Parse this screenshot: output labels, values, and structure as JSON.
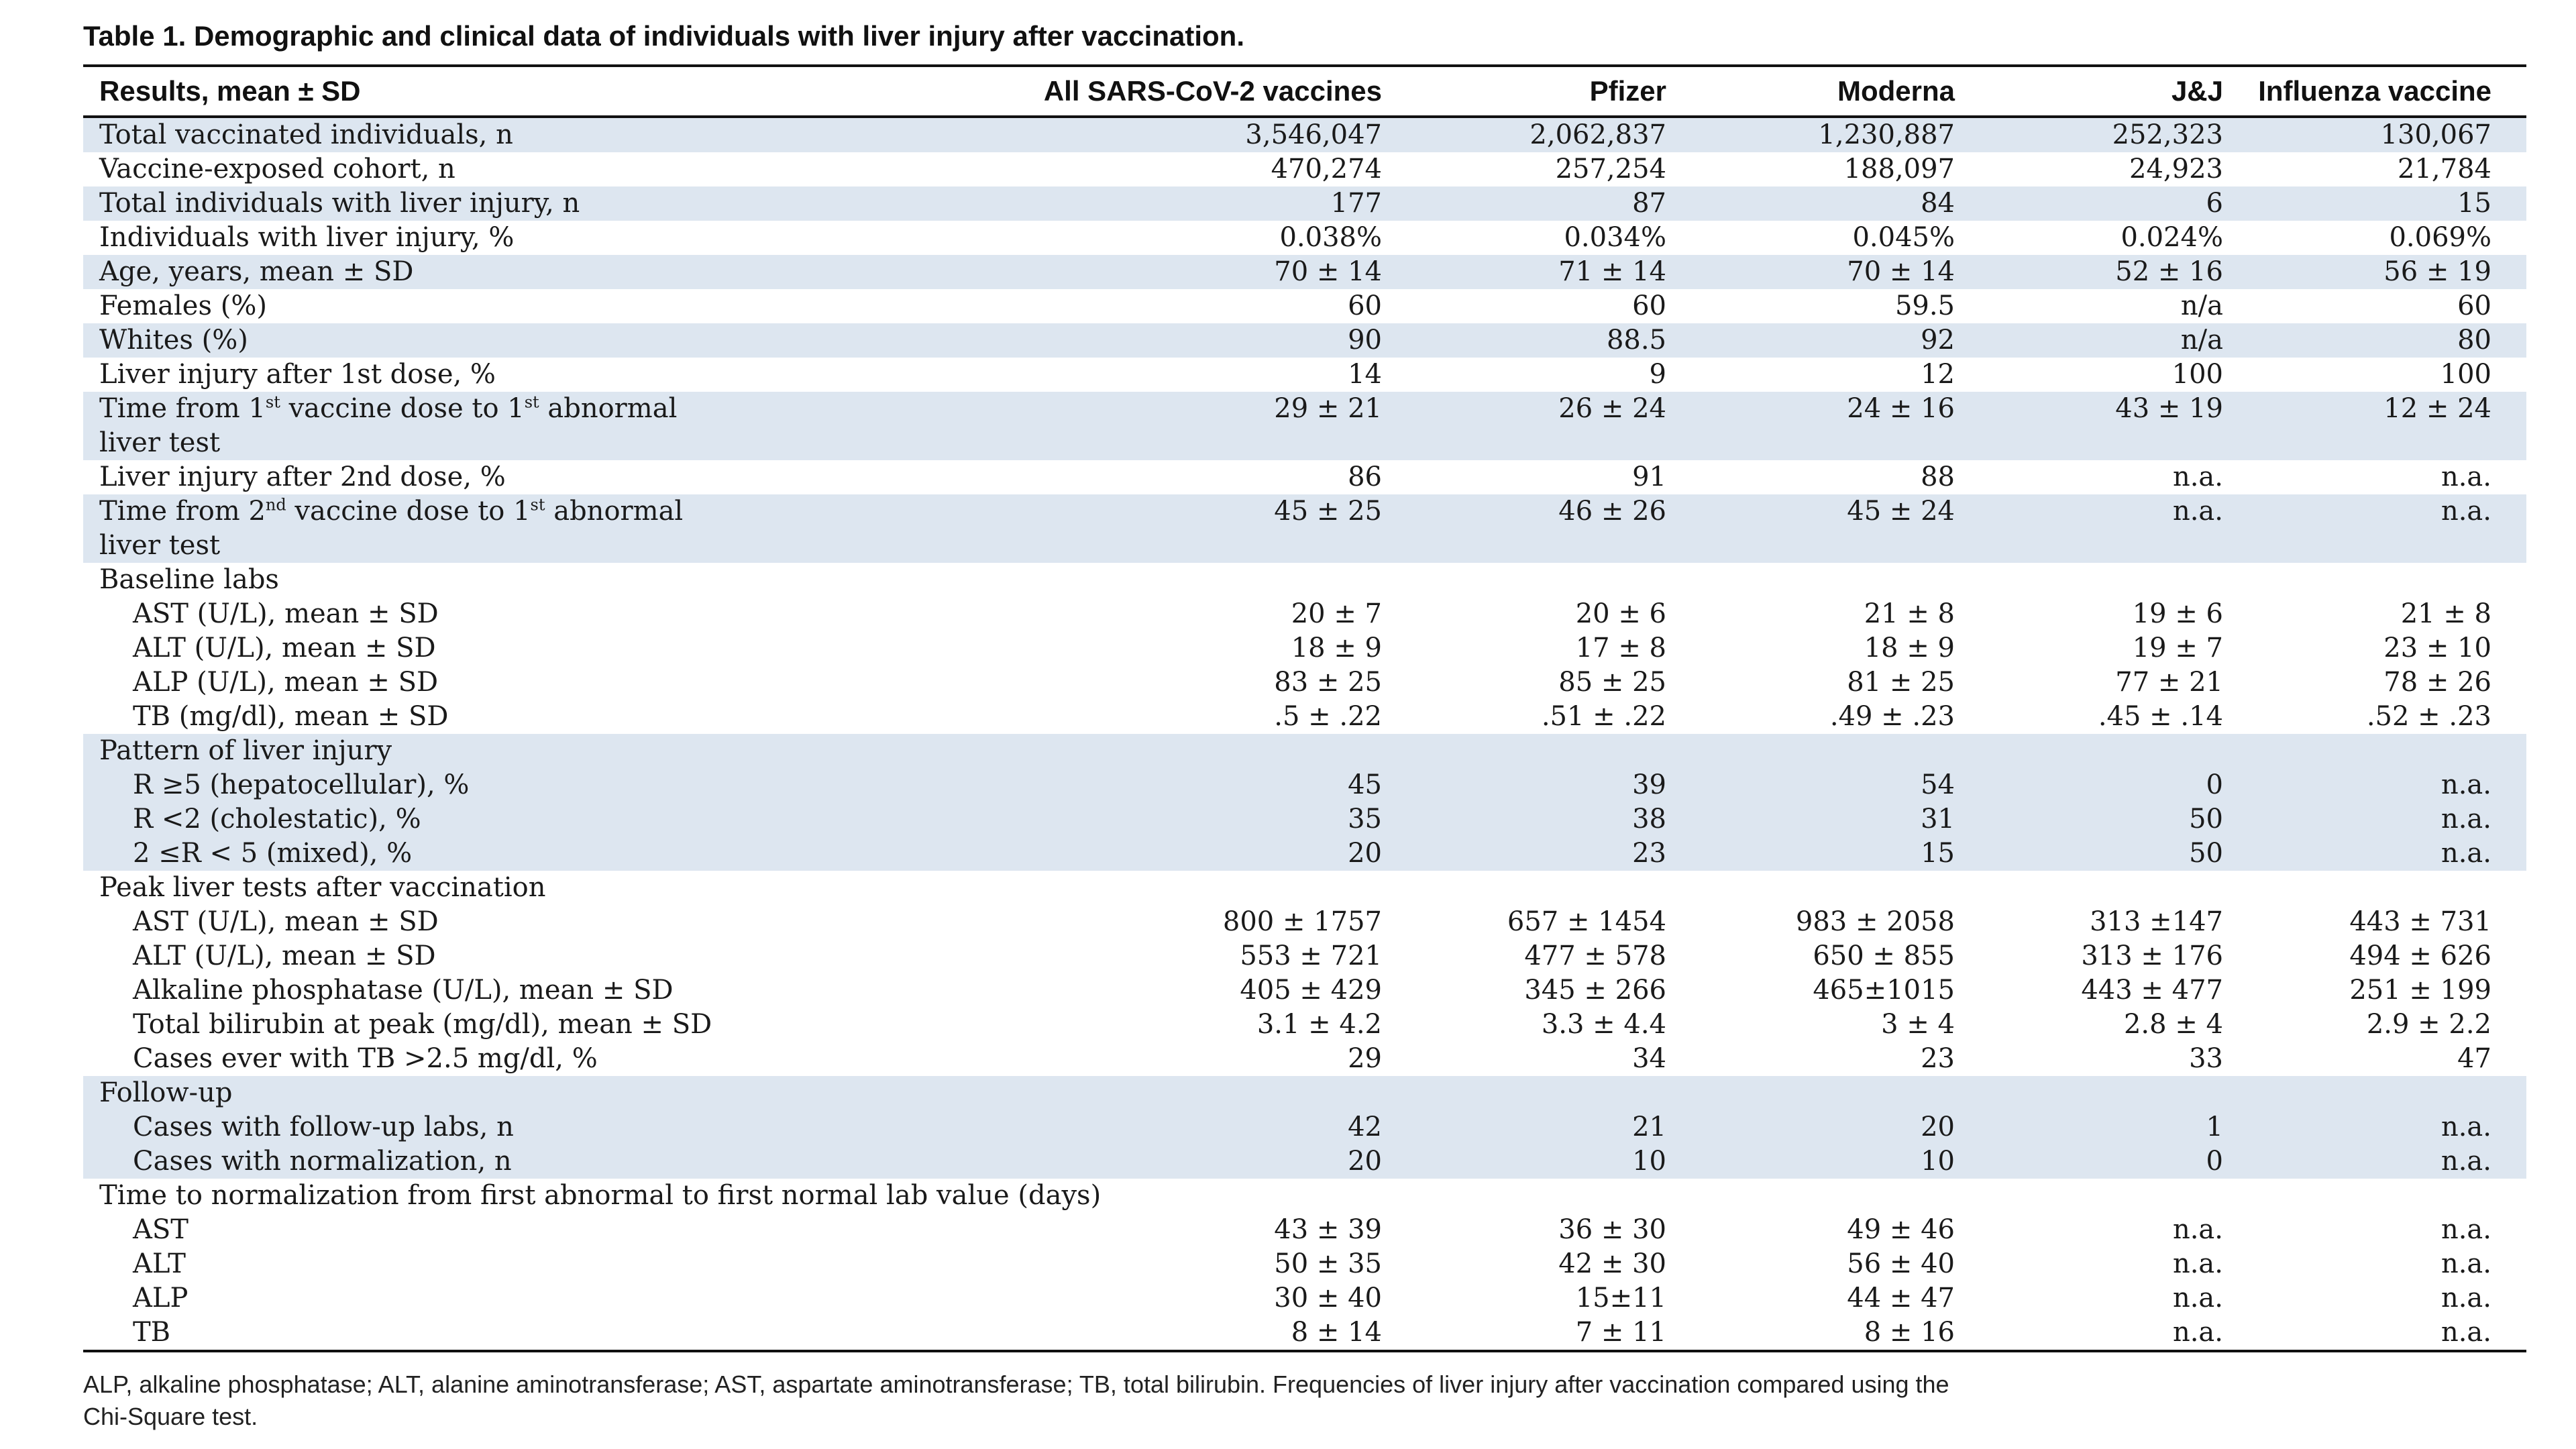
{
  "title": "Table 1. Demographic and clinical data of individuals with liver injury after vaccination.",
  "headers": [
    "Results, mean ± SD",
    "All SARS-CoV-2 vaccines",
    "Pfizer",
    "Moderna",
    "J&J",
    "Influenza vaccine"
  ],
  "rows": [
    {
      "label": "Total vaccinated individuals, n",
      "cells": [
        "3,546,047",
        "2,062,837",
        "1,230,887",
        "252,323",
        "130,067"
      ]
    },
    {
      "label": "Vaccine-exposed cohort, n",
      "cells": [
        "470,274",
        "257,254",
        "188,097",
        "24,923",
        "21,784"
      ]
    },
    {
      "label": "Total individuals with liver injury, n",
      "cells": [
        "177",
        "87",
        "84",
        "6",
        "15"
      ]
    },
    {
      "label": "Individuals with liver injury, %",
      "cells": [
        "0.038%",
        "0.034%",
        "0.045%",
        "0.024%",
        "0.069%"
      ]
    },
    {
      "label": "Age, years, mean ± SD",
      "cells": [
        "70 ± 14",
        "71 ± 14",
        "70 ± 14",
        "52 ± 16",
        "56 ± 19"
      ]
    },
    {
      "label": "Females (%)",
      "cells": [
        "60",
        "60",
        "59.5",
        "n/a",
        "60"
      ]
    },
    {
      "label": "Whites (%)",
      "cells": [
        "90",
        "88.5",
        "92",
        "n/a",
        "80"
      ]
    },
    {
      "label": "Liver injury after 1st dose, %",
      "cells": [
        "14",
        "9",
        "12",
        "100",
        "100"
      ]
    },
    {
      "label_a": "Time from 1",
      "label_sup1": "st",
      "label_b": " vaccine dose to 1",
      "label_sup2": "st",
      "label_c": " abnormal",
      "label_line2": "liver test",
      "cells": [
        "29 ± 21",
        "26 ± 24",
        "24 ± 16",
        "43 ± 19",
        "12 ± 24"
      ]
    },
    {
      "label": "Liver injury after 2nd dose, %",
      "cells": [
        "86",
        "91",
        "88",
        "n.a.",
        "n.a."
      ]
    },
    {
      "label_a": "Time from 2",
      "label_sup1": "nd",
      "label_b": " vaccine dose to 1",
      "label_sup2": "st",
      "label_c": " abnormal",
      "label_line2": "liver test",
      "cells": [
        "45 ± 25",
        "46 ± 26",
        "45 ± 24",
        "n.a.",
        "n.a."
      ]
    },
    {
      "label": "Baseline labs",
      "cells": [
        "",
        "",
        "",
        "",
        ""
      ]
    },
    {
      "label": "AST (U/L), mean ± SD",
      "cells": [
        "20 ± 7",
        "20 ± 6",
        "21 ± 8",
        "19 ± 6",
        "21 ± 8"
      ]
    },
    {
      "label": "ALT (U/L), mean ± SD",
      "cells": [
        "18 ± 9",
        "17 ± 8",
        "18 ± 9",
        "19 ± 7",
        "23 ± 10"
      ]
    },
    {
      "label": "ALP (U/L), mean ± SD",
      "cells": [
        "83 ± 25",
        "85 ± 25",
        "81 ± 25",
        "77 ± 21",
        "78 ± 26"
      ]
    },
    {
      "label": "TB (mg/dl), mean ± SD",
      "cells": [
        ".5 ± .22",
        ".51 ± .22",
        ".49 ± .23",
        ".45 ± .14",
        ".52 ± .23"
      ]
    },
    {
      "label": "Pattern of liver injury",
      "cells": [
        "",
        "",
        "",
        "",
        ""
      ]
    },
    {
      "label": "R ≥5 (hepatocellular), %",
      "cells": [
        "45",
        "39",
        "54",
        "0",
        "n.a."
      ]
    },
    {
      "label": "R <2 (cholestatic), %",
      "cells": [
        "35",
        "38",
        "31",
        "50",
        "n.a."
      ]
    },
    {
      "label": "2 ≤R < 5 (mixed), %",
      "cells": [
        "20",
        "23",
        "15",
        "50",
        "n.a."
      ]
    },
    {
      "label": "Peak liver tests after vaccination",
      "cells": [
        "",
        "",
        "",
        "",
        ""
      ]
    },
    {
      "label": "AST (U/L), mean ± SD",
      "cells": [
        "800 ± 1757",
        "657 ± 1454",
        "983 ± 2058",
        "313 ±147",
        "443 ± 731"
      ]
    },
    {
      "label": "ALT (U/L), mean ± SD",
      "cells": [
        "553 ± 721",
        "477 ± 578",
        "650 ± 855",
        "313 ± 176",
        "494 ± 626"
      ]
    },
    {
      "label": "Alkaline phosphatase (U/L), mean ± SD",
      "cells": [
        "405 ± 429",
        "345 ± 266",
        "465±1015",
        "443 ± 477",
        "251 ± 199"
      ]
    },
    {
      "label": "Total bilirubin at peak (mg/dl), mean ± SD",
      "cells": [
        "3.1 ± 4.2",
        "3.3 ± 4.4",
        "3 ± 4",
        "2.8 ± 4",
        "2.9 ± 2.2"
      ]
    },
    {
      "label": "Cases ever with TB >2.5 mg/dl, %",
      "cells": [
        "29",
        "34",
        "23",
        "33",
        "47"
      ]
    },
    {
      "label": "Follow-up",
      "cells": [
        "",
        "",
        "",
        "",
        ""
      ]
    },
    {
      "label": "Cases with follow-up labs, n",
      "cells": [
        "42",
        "21",
        "20",
        "1",
        "n.a."
      ]
    },
    {
      "label": "Cases with normalization, n",
      "cells": [
        "20",
        "10",
        "10",
        "0",
        "n.a."
      ]
    },
    {
      "label": "Time to normalization from first abnormal to first normal lab value (days)",
      "cells": [
        "",
        "",
        "",
        "",
        ""
      ]
    },
    {
      "label": "AST",
      "cells": [
        "43 ± 39",
        "36 ± 30",
        "49 ± 46",
        "n.a.",
        "n.a."
      ]
    },
    {
      "label": "ALT",
      "cells": [
        "50 ± 35",
        "42 ± 30",
        "56 ± 40",
        "n.a.",
        "n.a."
      ]
    },
    {
      "label": "ALP",
      "cells": [
        "30 ± 40",
        "15±11",
        "44 ± 47",
        "n.a.",
        "n.a."
      ]
    },
    {
      "label": "TB",
      "cells": [
        "8 ± 14",
        "7 ± 11",
        "8 ± 16",
        "n.a.",
        "n.a."
      ]
    }
  ],
  "footnote_line1": "ALP, alkaline phosphatase; ALT, alanine aminotransferase; AST, aspartate aminotransferase; TB, total bilirubin. Frequencies of liver injury after vaccination compared using the",
  "footnote_line2": "Chi-Square test.",
  "colors": {
    "shade": "#dde6f0",
    "text": "#111111",
    "rule": "#111111"
  }
}
